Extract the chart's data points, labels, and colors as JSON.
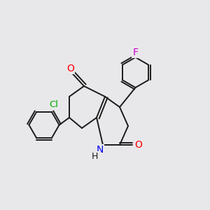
{
  "background_color": "#e8e8ea",
  "bond_color": "#1a1a1a",
  "atom_colors": {
    "O": "#ff0000",
    "N": "#0000ee",
    "Cl": "#00aa00",
    "F": "#cc00cc",
    "C": "#1a1a1a",
    "H": "#1a1a1a"
  },
  "line_width": 1.4,
  "figsize": [
    3.0,
    3.0
  ],
  "dpi": 100
}
